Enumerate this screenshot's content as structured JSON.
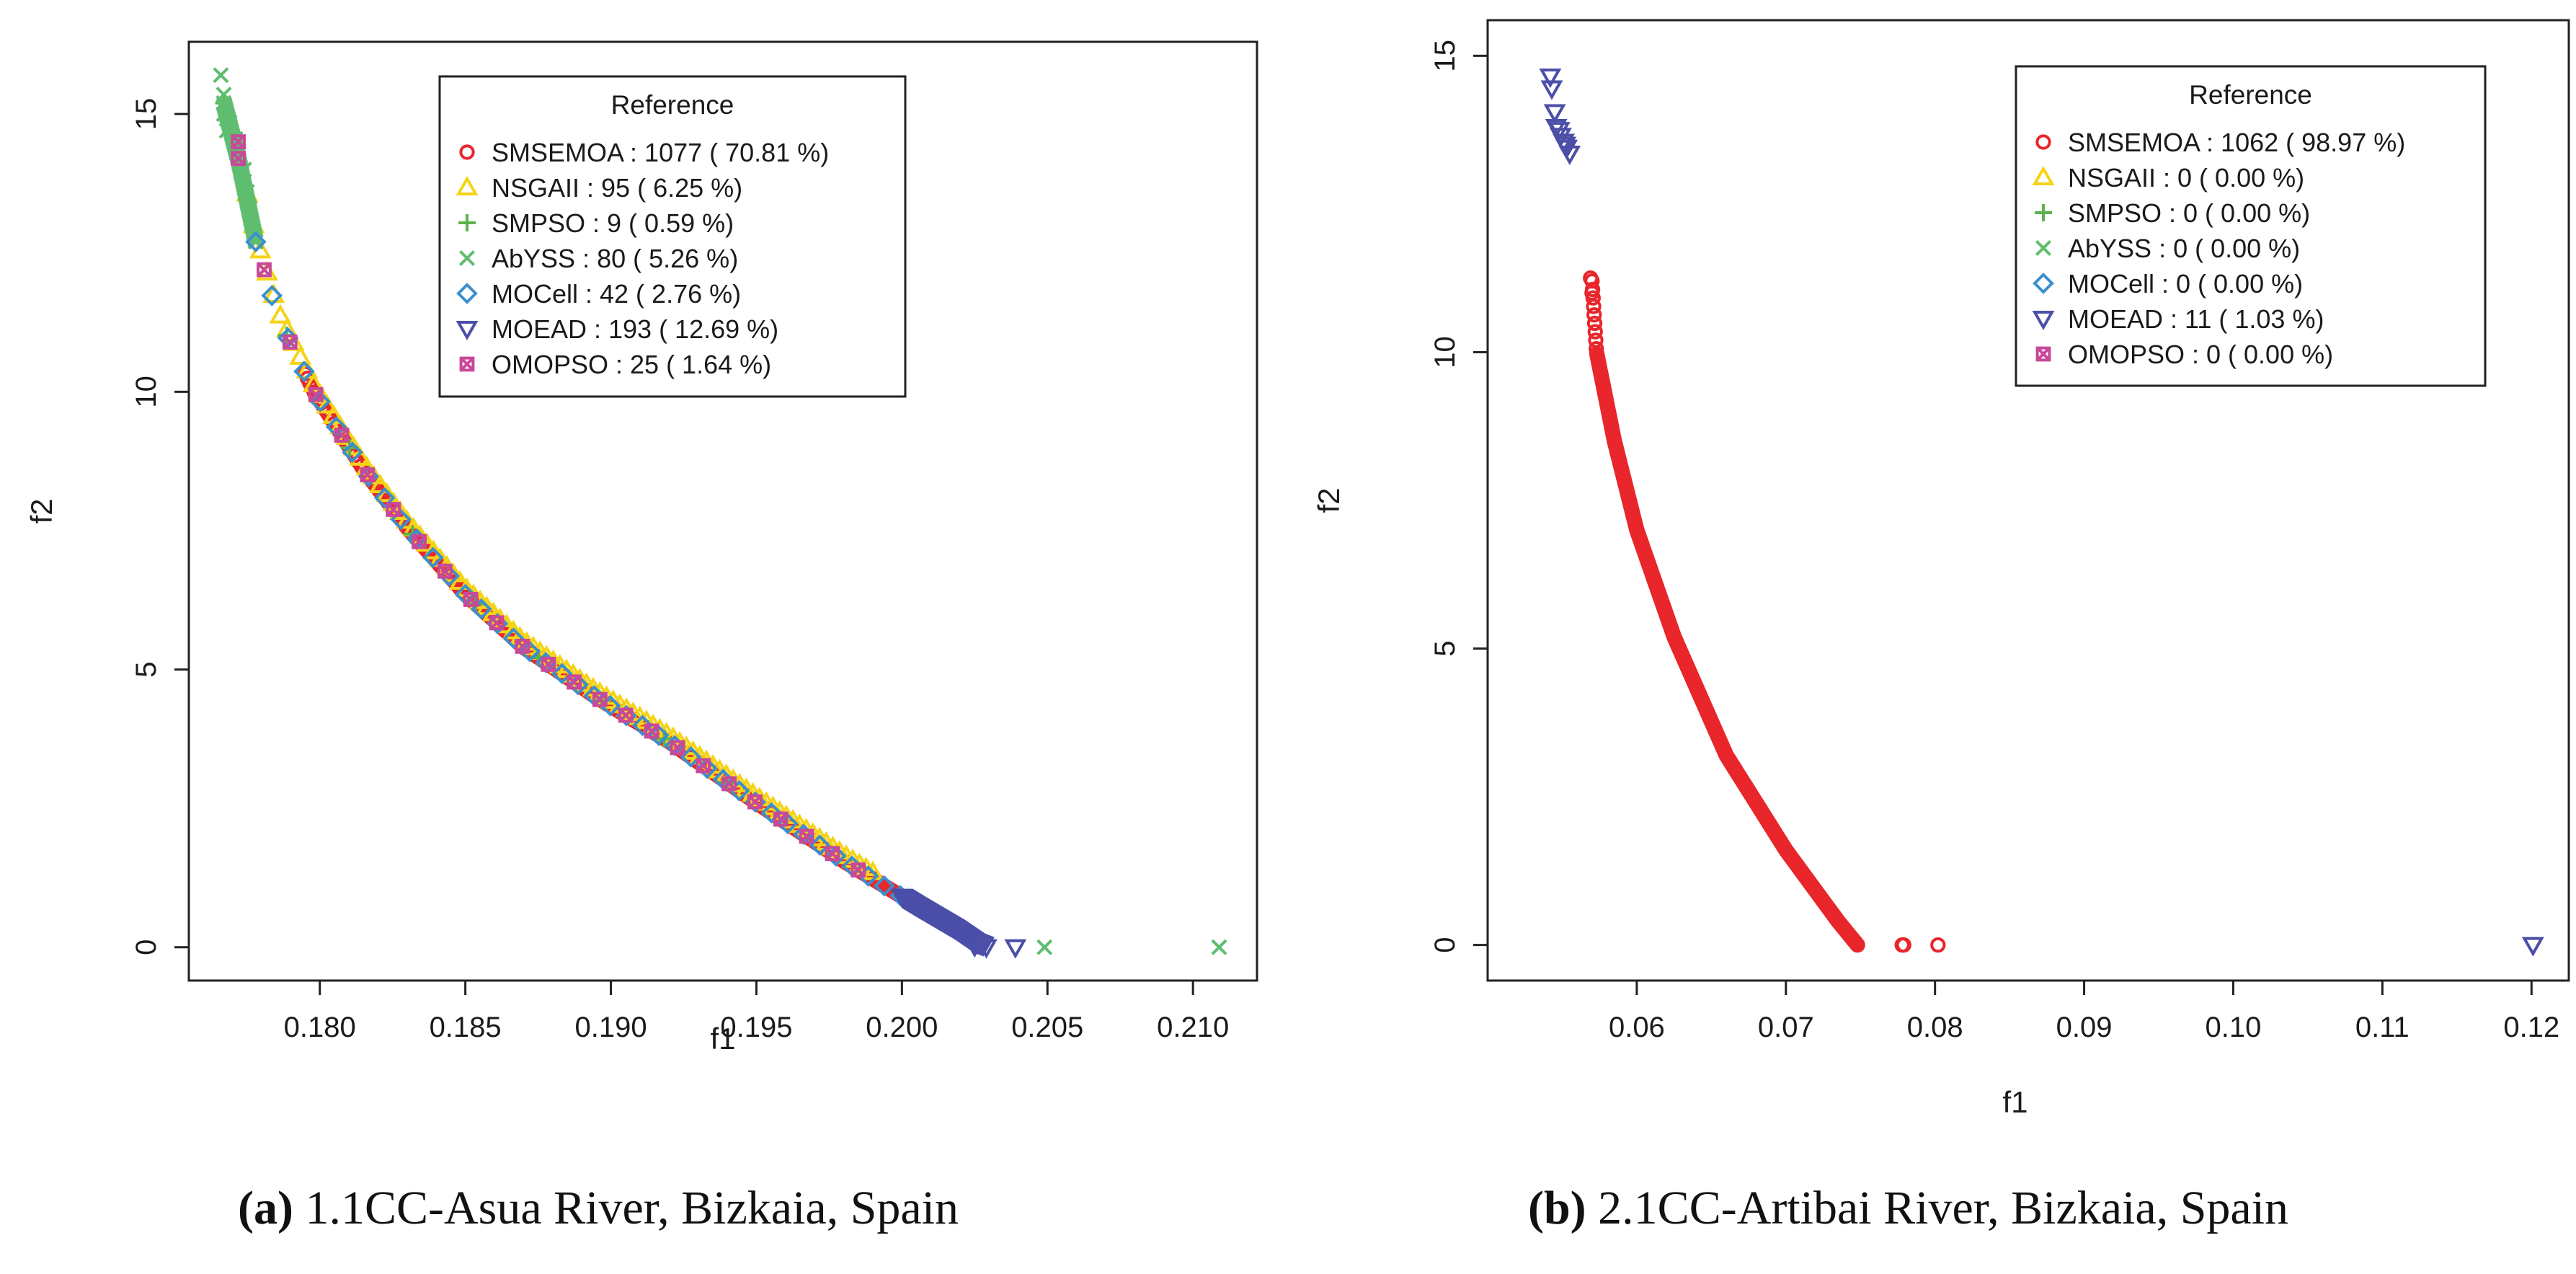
{
  "figure": {
    "panels": [
      {
        "id": "a",
        "caption_label": "(a)",
        "caption_text": "1.1CC-Asua River, Bizkaia, Spain",
        "legend_title": "Reference",
        "legend": [
          {
            "name": "SMSEMOA",
            "text": "SMSEMOA :  1077 ( 70.81 %)"
          },
          {
            "name": "NSGAII",
            "text": "NSGAII :  95 ( 6.25 %)"
          },
          {
            "name": "SMPSO",
            "text": "SMPSO :  9 ( 0.59 %)"
          },
          {
            "name": "AbYSS",
            "text": "AbYSS :  80 ( 5.26 %)"
          },
          {
            "name": "MOCell",
            "text": "MOCell :  42 ( 2.76 %)"
          },
          {
            "name": "MOEAD",
            "text": "MOEAD :  193 ( 12.69 %)"
          },
          {
            "name": "OMOPSO",
            "text": "OMOPSO :  25 ( 1.64 %)"
          }
        ]
      },
      {
        "id": "b",
        "caption_label": "(b)",
        "caption_text": "2.1CC-Artibai River, Bizkaia, Spain",
        "legend_title": "Reference",
        "legend": [
          {
            "name": "SMSEMOA",
            "text": "SMSEMOA :  1062 ( 98.97 %)"
          },
          {
            "name": "NSGAII",
            "text": "NSGAII :  0 ( 0.00 %)"
          },
          {
            "name": "SMPSO",
            "text": "SMPSO :  0 ( 0.00 %)"
          },
          {
            "name": "AbYSS",
            "text": "AbYSS :  0 ( 0.00 %)"
          },
          {
            "name": "MOCell",
            "text": "MOCell :  0 ( 0.00 %)"
          },
          {
            "name": "MOEAD",
            "text": "MOEAD :  11 ( 1.03 %)"
          },
          {
            "name": "OMOPSO",
            "text": "OMOPSO :  0 ( 0.00 %)"
          }
        ]
      }
    ]
  },
  "chart_data": [
    {
      "type": "scatter",
      "title": "",
      "xlabel": "f1",
      "ylabel": "f2",
      "xlim": [
        0.1755,
        0.2122
      ],
      "ylim": [
        -0.6,
        16.3
      ],
      "xticks": [
        0.18,
        0.185,
        0.19,
        0.195,
        0.2,
        0.205,
        0.21
      ],
      "xtick_labels": [
        "0.180",
        "0.185",
        "0.190",
        "0.195",
        "0.200",
        "0.205",
        "0.210"
      ],
      "yticks": [
        0,
        5,
        10,
        15
      ],
      "ytick_labels": [
        "0",
        "5",
        "10",
        "15"
      ],
      "legend_position": "top-right",
      "front_shape": [
        [
          0.1767,
          15.2
        ],
        [
          0.1772,
          14.2
        ],
        [
          0.1778,
          12.7
        ],
        [
          0.1786,
          11.3
        ],
        [
          0.1798,
          10.0
        ],
        [
          0.1815,
          8.6
        ],
        [
          0.183,
          7.55
        ],
        [
          0.185,
          6.35
        ],
        [
          0.187,
          5.4
        ],
        [
          0.1895,
          4.5
        ],
        [
          0.192,
          3.7
        ],
        [
          0.195,
          2.6
        ],
        [
          0.198,
          1.55
        ],
        [
          0.2005,
          0.75
        ],
        [
          0.2018,
          0.35
        ],
        [
          0.2025,
          0.1
        ],
        [
          0.203,
          0.0
        ]
      ],
      "series": [
        {
          "name": "SMSEMOA",
          "color": "#e8262b",
          "marker": "circle",
          "count": 1077,
          "range": [
            0.1795,
            0.2025
          ],
          "offset": 0.0
        },
        {
          "name": "NSGAII",
          "color": "#f5d316",
          "marker": "triangle",
          "count": 95,
          "range": [
            0.1775,
            0.199
          ],
          "offset": 0.12
        },
        {
          "name": "SMPSO",
          "color": "#5ab44a",
          "marker": "plus",
          "count": 9,
          "range": [
            0.1767,
            0.194
          ],
          "offset": 0.0
        },
        {
          "name": "AbYSS",
          "color": "#5fbd6f",
          "marker": "cross",
          "count": 80,
          "range": [
            0.1767,
            0.1778
          ],
          "offset": 0.0,
          "points": [
            [
              0.1766,
              15.7
            ],
            [
              0.1767,
              15.35
            ],
            [
              0.1767,
              15.0
            ],
            [
              0.1768,
              14.7
            ],
            [
              0.1769,
              14.85
            ],
            [
              0.1771,
              14.55
            ],
            [
              0.1772,
              14.3
            ],
            [
              0.1774,
              14.0
            ],
            [
              0.1775,
              13.6
            ],
            [
              0.1776,
              13.3
            ],
            [
              0.2049,
              0.0
            ],
            [
              0.2109,
              0.0
            ]
          ]
        },
        {
          "name": "MOCell",
          "color": "#3a8fd0",
          "marker": "diamond",
          "count": 42,
          "range": [
            0.1778,
            0.2005
          ],
          "offset": 0.0
        },
        {
          "name": "MOEAD",
          "color": "#4b4fa8",
          "marker": "triangle-down",
          "count": 193,
          "range": [
            0.2,
            0.2028
          ],
          "offset": 0.0,
          "points": [
            [
              0.2025,
              0.02
            ],
            [
              0.2029,
              0.0
            ],
            [
              0.2039,
              0.0
            ]
          ]
        },
        {
          "name": "OMOPSO",
          "color": "#c8489a",
          "marker": "square-x",
          "count": 25,
          "range": [
            0.1772,
            0.1985
          ],
          "offset": 0.0,
          "points": [
            [
              0.1772,
              14.5
            ]
          ]
        }
      ]
    },
    {
      "type": "scatter",
      "title": "",
      "xlabel": "f1",
      "ylabel": "f2",
      "xlim": [
        0.05,
        0.1225
      ],
      "ylim": [
        -0.6,
        15.6
      ],
      "xticks": [
        0.06,
        0.07,
        0.08,
        0.09,
        0.1,
        0.11,
        0.12
      ],
      "xtick_labels": [
        "0.06",
        "0.07",
        "0.08",
        "0.09",
        "0.10",
        "0.11",
        "0.12"
      ],
      "yticks": [
        0,
        5,
        10,
        15
      ],
      "ytick_labels": [
        "0",
        "5",
        "10",
        "15"
      ],
      "legend_position": "top-right",
      "front_shape": [
        [
          0.057,
          11.2
        ],
        [
          0.0573,
          10.0
        ],
        [
          0.0585,
          8.5
        ],
        [
          0.06,
          7.0
        ],
        [
          0.0625,
          5.2
        ],
        [
          0.066,
          3.2
        ],
        [
          0.07,
          1.6
        ],
        [
          0.0735,
          0.4
        ],
        [
          0.0748,
          0.0
        ]
      ],
      "series": [
        {
          "name": "SMSEMOA",
          "color": "#e8262b",
          "marker": "circle",
          "count": 1062,
          "range": [
            0.057,
            0.0748
          ],
          "offset": 0.0,
          "points": [
            [
              0.0569,
              11.25
            ],
            [
              0.057,
              11.0
            ],
            [
              0.0778,
              0.0
            ],
            [
              0.0779,
              0.0
            ],
            [
              0.0802,
              0.0
            ]
          ]
        },
        {
          "name": "NSGAII",
          "color": "#f5d316",
          "marker": "triangle",
          "count": 0
        },
        {
          "name": "SMPSO",
          "color": "#5ab44a",
          "marker": "plus",
          "count": 0
        },
        {
          "name": "AbYSS",
          "color": "#5fbd6f",
          "marker": "cross",
          "count": 0
        },
        {
          "name": "MOCell",
          "color": "#3a8fd0",
          "marker": "diamond",
          "count": 0
        },
        {
          "name": "MOEAD",
          "color": "#4b4fa8",
          "marker": "triangle-down",
          "count": 11,
          "points": [
            [
              0.0542,
              14.65
            ],
            [
              0.0543,
              14.45
            ],
            [
              0.0545,
              14.05
            ],
            [
              0.0546,
              13.8
            ],
            [
              0.0548,
              13.75
            ],
            [
              0.0549,
              13.65
            ],
            [
              0.0551,
              13.55
            ],
            [
              0.0552,
              13.5
            ],
            [
              0.0553,
              13.45
            ],
            [
              0.0555,
              13.35
            ],
            [
              0.1201,
              0.0
            ]
          ]
        },
        {
          "name": "OMOPSO",
          "color": "#c8489a",
          "marker": "square-x",
          "count": 0
        }
      ]
    }
  ]
}
